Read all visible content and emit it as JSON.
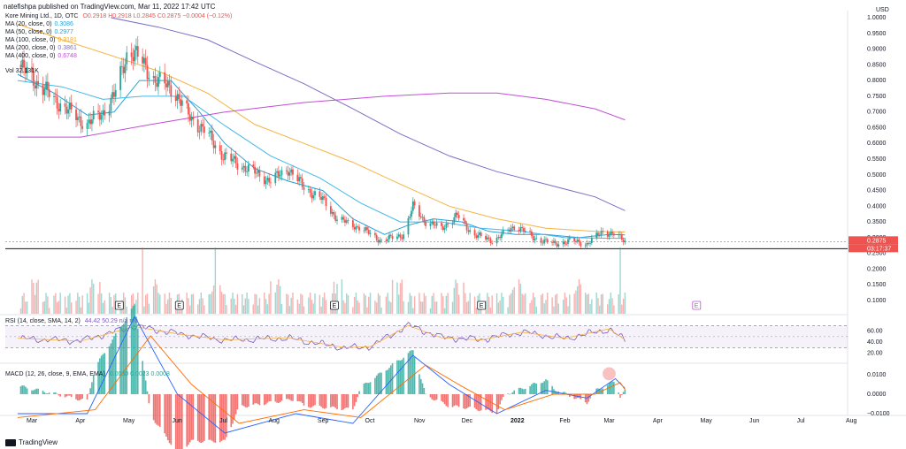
{
  "header": {
    "text": "natefishpa published on TradingView.com, Mar 11, 2022 17:42 UTC"
  },
  "legend": {
    "symbol": "Kore Mining Ltd., 1D, OTC",
    "ohlc": "O0.2918  H0.2918  L0.2845  C0.2875  −0.0004 (−0.12%)",
    "ma": [
      {
        "label": "MA (20, close, 0)",
        "value": "0.3086",
        "color": "#26a0d8"
      },
      {
        "label": "MA (50, close, 0)",
        "value": "0.2977",
        "color": "#26a0d8"
      },
      {
        "label": "MA (100, close, 0)",
        "value": "0.3181",
        "color": "#f5a623"
      },
      {
        "label": "MA (200, close, 0)",
        "value": "0.3861",
        "color": "#7b6fc6"
      },
      {
        "label": "MA (400, close, 0)",
        "value": "0.6748",
        "color": "#c04fd6"
      }
    ],
    "vol": "Vol  32.131K",
    "rsi": "RSI (14, close, SMA, 14, 2)",
    "rsi_vals": "44.42  50.29  n/a  n/a",
    "macd": "MACD (12, 26, close, 9, EMA, EMA)",
    "macd_vals": "0.0030  0.0023  0.0008"
  },
  "price_axis": {
    "unit": "USD",
    "ticks": [
      "1.0000",
      "0.9500",
      "0.9000",
      "0.8500",
      "0.8000",
      "0.7500",
      "0.7000",
      "0.6500",
      "0.6000",
      "0.5500",
      "0.5000",
      "0.4500",
      "0.4000",
      "0.3500",
      "0.3000",
      "0.2500",
      "0.2000",
      "0.1500",
      "0.1000"
    ],
    "last_price": "0.2875",
    "countdown": "03:17:37"
  },
  "rsi_axis": {
    "ticks": [
      "60.00",
      "40.00",
      "20.00"
    ]
  },
  "macd_axis": {
    "ticks": [
      "0.0100",
      "0.0000",
      "−0.0100"
    ]
  },
  "time_axis": [
    "Mar",
    "Apr",
    "May",
    "Jun",
    "Jul",
    "Aug",
    "Sep",
    "Oct",
    "Nov",
    "Dec",
    "2022",
    "Feb",
    "Mar",
    "Apr",
    "May",
    "Jun",
    "Jul",
    "Aug"
  ],
  "earnings_marker": "E",
  "brand": "TradingView",
  "colors": {
    "up": "#26a69a",
    "down": "#ef5350",
    "rsi": "#7e57c2",
    "macd": "#2962ff",
    "signal": "#ff6d00"
  },
  "chart_data": {
    "type": "candlestick",
    "title": "Kore Mining Ltd., 1D, OTC",
    "x_range": [
      "2021-03-01",
      "2022-08-31"
    ],
    "y_range": [
      0.05,
      1.0
    ],
    "support_level": 0.265,
    "close_path": [
      [
        "2021-02-20",
        0.85
      ],
      [
        "2021-03-01",
        0.81
      ],
      [
        "2021-03-15",
        0.74
      ],
      [
        "2021-03-25",
        0.7
      ],
      [
        "2021-04-05",
        0.66
      ],
      [
        "2021-04-15",
        0.7
      ],
      [
        "2021-04-22",
        0.75
      ],
      [
        "2021-05-01",
        0.9
      ],
      [
        "2021-05-08",
        0.87
      ],
      [
        "2021-05-18",
        0.8
      ],
      [
        "2021-05-28",
        0.78
      ],
      [
        "2021-06-08",
        0.69
      ],
      [
        "2021-06-20",
        0.63
      ],
      [
        "2021-06-30",
        0.56
      ],
      [
        "2021-07-15",
        0.52
      ],
      [
        "2021-07-30",
        0.48
      ],
      [
        "2021-08-10",
        0.52
      ],
      [
        "2021-08-20",
        0.46
      ],
      [
        "2021-09-01",
        0.42
      ],
      [
        "2021-09-10",
        0.36
      ],
      [
        "2021-09-25",
        0.33
      ],
      [
        "2021-10-08",
        0.29
      ],
      [
        "2021-10-22",
        0.31
      ],
      [
        "2021-10-28",
        0.4
      ],
      [
        "2021-11-05",
        0.35
      ],
      [
        "2021-11-15",
        0.33
      ],
      [
        "2021-11-25",
        0.37
      ],
      [
        "2021-12-05",
        0.31
      ],
      [
        "2021-12-18",
        0.29
      ],
      [
        "2022-01-01",
        0.34
      ],
      [
        "2022-01-12",
        0.3
      ],
      [
        "2022-01-25",
        0.28
      ],
      [
        "2022-02-05",
        0.29
      ],
      [
        "2022-02-15",
        0.28
      ],
      [
        "2022-02-25",
        0.32
      ],
      [
        "2022-03-05",
        0.31
      ],
      [
        "2022-03-11",
        0.2875
      ]
    ],
    "ma20": [
      [
        "2021-02-20",
        0.82
      ],
      [
        "2021-03-15",
        0.76
      ],
      [
        "2021-04-05",
        0.69
      ],
      [
        "2021-04-22",
        0.7
      ],
      [
        "2021-05-08",
        0.8
      ],
      [
        "2021-05-28",
        0.8
      ],
      [
        "2021-06-15",
        0.7
      ],
      [
        "2021-07-01",
        0.6
      ],
      [
        "2021-07-20",
        0.52
      ],
      [
        "2021-08-10",
        0.48
      ],
      [
        "2021-09-01",
        0.45
      ],
      [
        "2021-09-20",
        0.36
      ],
      [
        "2021-10-10",
        0.31
      ],
      [
        "2021-10-25",
        0.34
      ],
      [
        "2021-11-10",
        0.36
      ],
      [
        "2021-11-28",
        0.35
      ],
      [
        "2021-12-15",
        0.32
      ],
      [
        "2022-01-01",
        0.31
      ],
      [
        "2022-01-20",
        0.31
      ],
      [
        "2022-02-10",
        0.3
      ],
      [
        "2022-03-01",
        0.31
      ],
      [
        "2022-03-11",
        0.3086
      ]
    ],
    "ma50": [
      [
        "2021-02-20",
        0.8
      ],
      [
        "2021-03-20",
        0.78
      ],
      [
        "2021-04-15",
        0.74
      ],
      [
        "2021-05-10",
        0.75
      ],
      [
        "2021-06-05",
        0.75
      ],
      [
        "2021-06-30",
        0.66
      ],
      [
        "2021-07-30",
        0.56
      ],
      [
        "2021-08-30",
        0.49
      ],
      [
        "2021-09-25",
        0.41
      ],
      [
        "2021-10-20",
        0.35
      ],
      [
        "2021-11-15",
        0.35
      ],
      [
        "2021-12-10",
        0.33
      ],
      [
        "2022-01-05",
        0.32
      ],
      [
        "2022-02-01",
        0.3
      ],
      [
        "2022-03-11",
        0.2977
      ]
    ],
    "ma100": [
      [
        "2021-02-20",
        0.98
      ],
      [
        "2021-03-20",
        0.93
      ],
      [
        "2021-04-20",
        0.88
      ],
      [
        "2021-05-20",
        0.83
      ],
      [
        "2021-06-20",
        0.76
      ],
      [
        "2021-07-20",
        0.66
      ],
      [
        "2021-08-20",
        0.6
      ],
      [
        "2021-09-20",
        0.54
      ],
      [
        "2021-10-20",
        0.47
      ],
      [
        "2021-11-20",
        0.4
      ],
      [
        "2021-12-20",
        0.36
      ],
      [
        "2022-01-20",
        0.33
      ],
      [
        "2022-02-20",
        0.32
      ],
      [
        "2022-03-11",
        0.3181
      ]
    ],
    "ma200": [
      [
        "2021-04-20",
        1.0
      ],
      [
        "2021-05-20",
        0.97
      ],
      [
        "2021-06-20",
        0.93
      ],
      [
        "2021-07-20",
        0.86
      ],
      [
        "2021-08-20",
        0.79
      ],
      [
        "2021-09-20",
        0.71
      ],
      [
        "2021-10-20",
        0.63
      ],
      [
        "2021-11-20",
        0.56
      ],
      [
        "2021-12-20",
        0.51
      ],
      [
        "2022-01-20",
        0.47
      ],
      [
        "2022-02-20",
        0.43
      ],
      [
        "2022-03-11",
        0.3861
      ]
    ],
    "ma400": [
      [
        "2021-02-20",
        0.62
      ],
      [
        "2021-04-01",
        0.62
      ],
      [
        "2021-05-15",
        0.66
      ],
      [
        "2021-07-01",
        0.7
      ],
      [
        "2021-08-20",
        0.73
      ],
      [
        "2021-10-10",
        0.75
      ],
      [
        "2021-11-20",
        0.76
      ],
      [
        "2021-12-20",
        0.76
      ],
      [
        "2022-01-20",
        0.74
      ],
      [
        "2022-02-20",
        0.71
      ],
      [
        "2022-03-11",
        0.6748
      ]
    ],
    "volume_spikes": [
      [
        "2021-05-10",
        1.0
      ],
      [
        "2021-06-25",
        1.0
      ],
      [
        "2021-09-25",
        0.55
      ],
      [
        "2022-03-08",
        1.0
      ]
    ],
    "earnings_dates": [
      "2021-04-25",
      "2021-06-02",
      "2021-09-08",
      "2021-12-10",
      "2022-04-25"
    ],
    "rsi": [
      [
        "2021-02-20",
        47
      ],
      [
        "2021-04-01",
        42
      ],
      [
        "2021-05-05",
        68
      ],
      [
        "2021-06-01",
        55
      ],
      [
        "2021-07-01",
        44
      ],
      [
        "2021-08-10",
        48
      ],
      [
        "2021-09-15",
        30
      ],
      [
        "2021-10-01",
        32
      ],
      [
        "2021-10-25",
        70
      ],
      [
        "2021-11-15",
        48
      ],
      [
        "2021-12-10",
        44
      ],
      [
        "2022-01-05",
        58
      ],
      [
        "2022-02-01",
        47
      ],
      [
        "2022-03-01",
        64
      ],
      [
        "2022-03-11",
        44.42
      ]
    ],
    "rsi_bands": [
      30,
      70
    ],
    "macd": [
      [
        "2021-02-20",
        -0.01
      ],
      [
        "2021-04-05",
        -0.01
      ],
      [
        "2021-05-05",
        0.04
      ],
      [
        "2021-06-01",
        0.0
      ],
      [
        "2021-07-01",
        -0.02
      ],
      [
        "2021-08-15",
        -0.01
      ],
      [
        "2021-09-20",
        -0.015
      ],
      [
        "2021-10-28",
        0.02
      ],
      [
        "2021-11-20",
        0.005
      ],
      [
        "2021-12-20",
        -0.01
      ],
      [
        "2022-01-20",
        0.002
      ],
      [
        "2022-02-15",
        -0.002
      ],
      [
        "2022-03-05",
        0.008
      ],
      [
        "2022-03-11",
        0.003
      ]
    ],
    "signal": [
      [
        "2021-02-20",
        -0.012
      ],
      [
        "2021-04-10",
        -0.008
      ],
      [
        "2021-05-15",
        0.03
      ],
      [
        "2021-06-10",
        0.005
      ],
      [
        "2021-07-10",
        -0.015
      ],
      [
        "2021-08-20",
        -0.008
      ],
      [
        "2021-09-25",
        -0.012
      ],
      [
        "2021-11-05",
        0.015
      ],
      [
        "2021-11-28",
        0.004
      ],
      [
        "2021-12-25",
        -0.008
      ],
      [
        "2022-01-25",
        0.0
      ],
      [
        "2022-02-20",
        0.0
      ],
      [
        "2022-03-08",
        0.006
      ],
      [
        "2022-03-11",
        0.0023
      ]
    ],
    "macd_y_range": [
      -0.012,
      0.012
    ]
  }
}
